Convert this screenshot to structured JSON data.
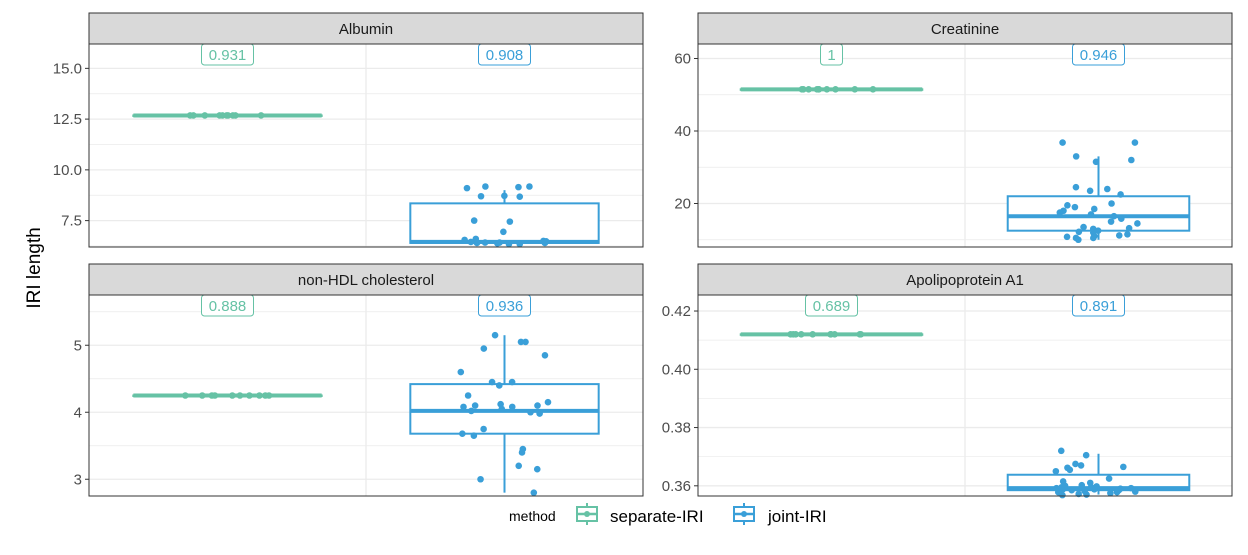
{
  "figure": {
    "ylabel": "IRI length",
    "legend": {
      "title": "method",
      "entries": [
        {
          "label": "separate-IRI",
          "color": "#66c2a5"
        },
        {
          "label": "joint-IRI",
          "color": "#3a9fd8"
        }
      ],
      "placement": "bottom"
    },
    "colors": {
      "separate": "#66c2a5",
      "joint": "#3a9fd8",
      "strip_bg": "#d9d9d9",
      "grid": "#ebebeb",
      "panel_border": "#333333"
    }
  },
  "chart_data": [
    {
      "type": "box",
      "title": "Albumin",
      "ylim": [
        6.2,
        16.2
      ],
      "yticks": [
        7.5,
        10.0,
        12.5,
        15.0
      ],
      "ytick_labels": [
        "7.5",
        "10.0",
        "12.5",
        "15.0"
      ],
      "grid": true,
      "series": [
        {
          "name": "separate-IRI",
          "coverage_label": "0.931",
          "box": {
            "min": 12.68,
            "q1": 12.68,
            "median": 12.68,
            "q3": 12.68,
            "max": 12.68
          },
          "points": [
            12.68,
            12.68,
            12.68,
            12.68,
            12.68,
            12.68,
            12.68,
            12.68,
            12.68,
            12.68
          ]
        },
        {
          "name": "joint-IRI",
          "coverage_label": "0.908",
          "box": {
            "min": 6.4,
            "q1": 6.4,
            "median": 6.45,
            "q3": 8.35,
            "max": 9.0
          },
          "points": [
            9.18,
            9.18,
            9.15,
            9.1,
            8.72,
            8.7,
            8.68,
            7.5,
            7.45,
            6.95,
            6.6,
            6.55,
            6.5,
            6.48,
            6.45,
            6.42,
            6.4,
            6.4,
            6.38,
            6.35,
            6.35,
            6.42
          ]
        }
      ]
    },
    {
      "type": "box",
      "title": "Creatinine",
      "ylim": [
        8,
        64
      ],
      "yticks": [
        20,
        40,
        60
      ],
      "ytick_labels": [
        "20",
        "40",
        "60"
      ],
      "grid": true,
      "series": [
        {
          "name": "separate-IRI",
          "coverage_label": "1",
          "box": {
            "min": 51.5,
            "q1": 51.5,
            "median": 51.5,
            "q3": 51.5,
            "max": 51.5
          },
          "points": [
            51.5,
            51.5,
            51.5,
            51.5,
            51.5,
            51.5,
            51.5,
            51.5,
            51.5,
            51.5
          ]
        },
        {
          "name": "joint-IRI",
          "coverage_label": "0.946",
          "box": {
            "min": 10,
            "q1": 12.5,
            "median": 16.5,
            "q3": 22,
            "max": 33
          },
          "points": [
            36.8,
            36.8,
            33,
            32,
            31.5,
            24.5,
            24,
            23.5,
            22.5,
            20,
            19.5,
            19,
            18.5,
            18,
            17.5,
            17,
            16.5,
            15,
            14.5,
            13.5,
            13,
            12.5,
            12,
            11.5,
            11,
            10.5,
            10,
            10.5,
            11.2,
            10.8,
            12.2,
            15.8,
            13.2
          ]
        }
      ]
    },
    {
      "type": "box",
      "title": "non-HDL cholesterol",
      "ylim": [
        2.75,
        5.75
      ],
      "yticks": [
        3,
        4,
        5
      ],
      "ytick_labels": [
        "3",
        "4",
        "5"
      ],
      "grid": true,
      "series": [
        {
          "name": "separate-IRI",
          "coverage_label": "0.888",
          "box": {
            "min": 4.25,
            "q1": 4.25,
            "median": 4.25,
            "q3": 4.25,
            "max": 4.25
          },
          "points": [
            4.25,
            4.25,
            4.25,
            4.25,
            4.25,
            4.25,
            4.25,
            4.25,
            4.25,
            4.25
          ]
        },
        {
          "name": "joint-IRI",
          "coverage_label": "0.936",
          "box": {
            "min": 2.8,
            "q1": 3.68,
            "median": 4.02,
            "q3": 4.42,
            "max": 5.15
          },
          "points": [
            5.15,
            5.05,
            5.05,
            4.95,
            4.85,
            4.6,
            4.45,
            4.45,
            4.4,
            4.25,
            4.15,
            4.12,
            4.1,
            4.08,
            4.05,
            4.02,
            4.0,
            3.98,
            3.75,
            3.68,
            3.65,
            3.45,
            3.4,
            3.2,
            3.15,
            3.0,
            2.8,
            4.1,
            4.08
          ]
        }
      ]
    },
    {
      "type": "box",
      "title": "Apolipoprotein A1",
      "ylim": [
        0.3565,
        0.4255
      ],
      "yticks": [
        0.36,
        0.38,
        0.4,
        0.42
      ],
      "ytick_labels": [
        "0.36",
        "0.38",
        "0.40",
        "0.42"
      ],
      "grid": true,
      "series": [
        {
          "name": "separate-IRI",
          "coverage_label": "0.689",
          "box": {
            "min": 0.412,
            "q1": 0.412,
            "median": 0.412,
            "q3": 0.412,
            "max": 0.412
          },
          "points": [
            0.412,
            0.412,
            0.412,
            0.412,
            0.412,
            0.412,
            0.412,
            0.412,
            0.412,
            0.412
          ]
        },
        {
          "name": "joint-IRI",
          "coverage_label": "0.891",
          "box": {
            "min": 0.357,
            "q1": 0.3585,
            "median": 0.3592,
            "q3": 0.3638,
            "max": 0.371
          },
          "points": [
            0.372,
            0.3705,
            0.3675,
            0.367,
            0.3665,
            0.3662,
            0.3655,
            0.365,
            0.3625,
            0.3615,
            0.361,
            0.36,
            0.3598,
            0.3595,
            0.3592,
            0.359,
            0.3588,
            0.3585,
            0.3582,
            0.358,
            0.3578,
            0.3575,
            0.3572,
            0.357,
            0.3568,
            0.3592,
            0.3588,
            0.3595,
            0.3585,
            0.3602,
            0.3578
          ]
        }
      ]
    }
  ]
}
